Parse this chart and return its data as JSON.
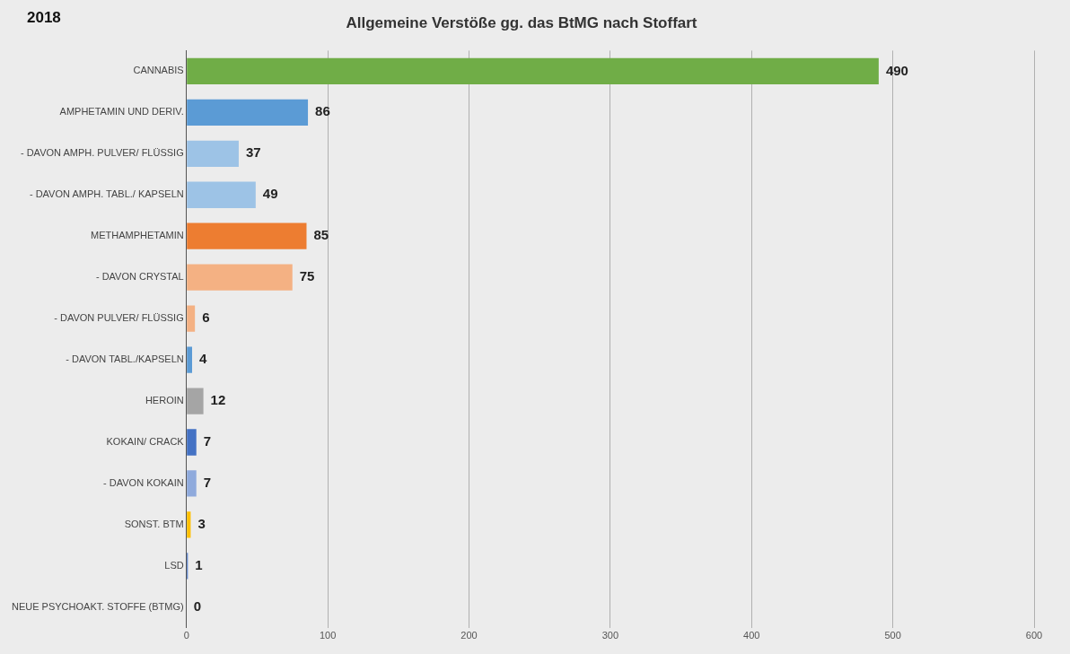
{
  "chart_data": {
    "type": "bar",
    "orientation": "horizontal",
    "title": "Allgemeine Verstöße gg. das BtMG nach Stoffart",
    "annotations": [
      "2018"
    ],
    "categories": [
      "CANNABIS",
      "AMPHETAMIN UND DERIV.",
      "- DAVON AMPH. PULVER/ FLÜSSIG",
      "- DAVON AMPH. TABL./ KAPSELN",
      "METHAMPHETAMIN",
      "- DAVON CRYSTAL",
      "- DAVON PULVER/ FLÜSSIG",
      "- DAVON TABL./KAPSELN",
      "HEROIN",
      "KOKAIN/ CRACK",
      "- DAVON KOKAIN",
      "SONST. BTM",
      "LSD",
      "NEUE PSYCHOAKT. STOFFE (BTMG)"
    ],
    "values": [
      490,
      86,
      37,
      49,
      85,
      75,
      6,
      4,
      12,
      7,
      7,
      3,
      1,
      0
    ],
    "colors": [
      "#70ad47",
      "#5b9bd5",
      "#9dc3e6",
      "#9dc3e6",
      "#ed7d31",
      "#f4b183",
      "#f4b183",
      "#5b9bd5",
      "#a5a5a5",
      "#4472c4",
      "#8faadc",
      "#ffc000",
      "#4472c4",
      "#4472c4"
    ],
    "xlim": [
      0,
      600
    ],
    "xticks": [
      0,
      100,
      200,
      300,
      400,
      500,
      600
    ],
    "grid": "x",
    "data_labels": true,
    "legend": false
  }
}
